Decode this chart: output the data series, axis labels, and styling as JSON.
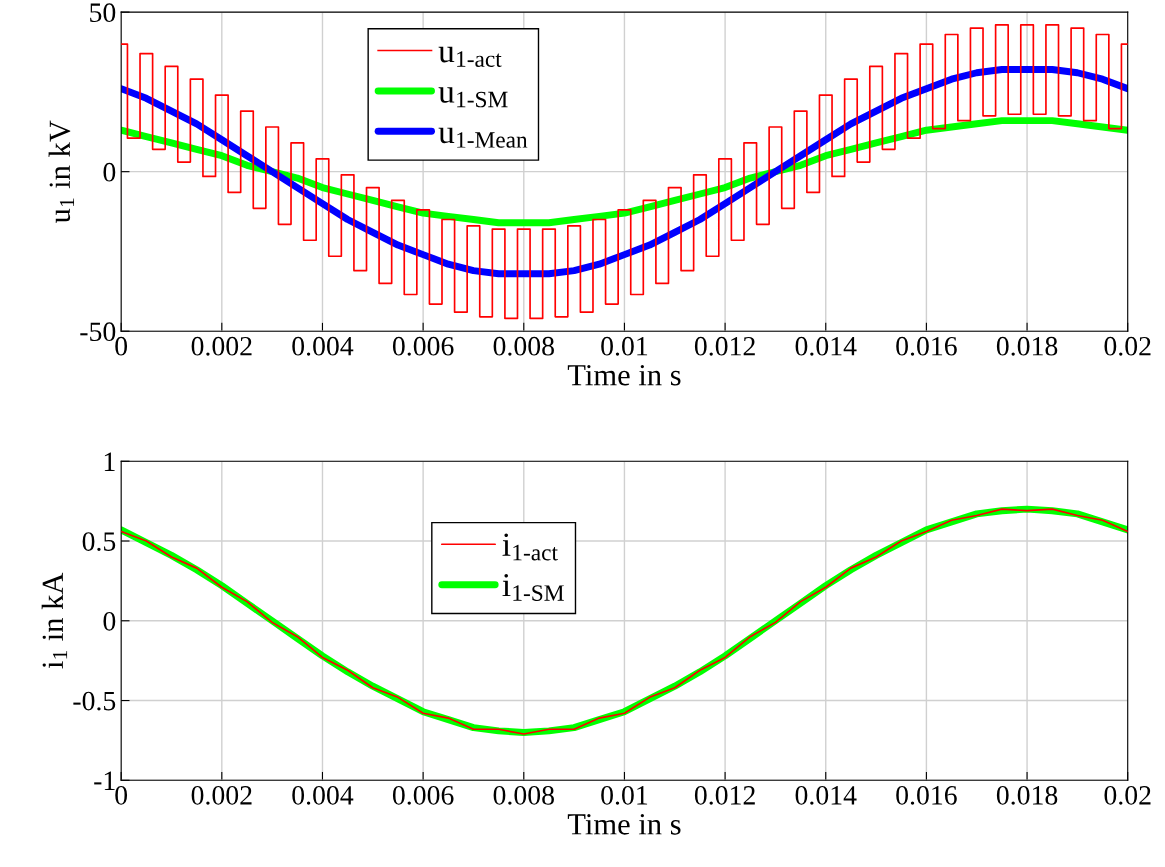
{
  "chart_data": [
    {
      "type": "line",
      "xlabel": "Time in s",
      "ylabel": "u$_{1}$ in kV",
      "xlim": [
        0,
        0.02
      ],
      "ylim": [
        -50,
        50
      ],
      "xticks": [
        0,
        0.002,
        0.004,
        0.006,
        0.008,
        0.01,
        0.012,
        0.014,
        0.016,
        0.018,
        0.02
      ],
      "yticks": [
        -50,
        0,
        50
      ],
      "grid": true,
      "legend": "top",
      "line_style": "solid",
      "marker": "none",
      "series": [
        {
          "name": "u$_{1-act}$",
          "color": "#ff0000",
          "type": "step",
          "x": [
            0,
            0.00025,
            0.0005,
            0.00075,
            0.001,
            0.00125,
            0.0015,
            0.00175,
            0.002,
            0.00225,
            0.0025,
            0.00275,
            0.003,
            0.00325,
            0.0035,
            0.00375,
            0.004,
            0.00425,
            0.0045,
            0.00475,
            0.005,
            0.00525,
            0.0055,
            0.00575,
            0.006,
            0.00625,
            0.0065,
            0.00675,
            0.007,
            0.00725,
            0.0075,
            0.00775,
            0.008,
            0.00825,
            0.0085,
            0.00875,
            0.009,
            0.00925,
            0.0095,
            0.00975,
            0.01,
            0.01025,
            0.0105,
            0.01075,
            0.011,
            0.01125,
            0.0115,
            0.01175,
            0.012,
            0.01225,
            0.0125,
            0.01275,
            0.013,
            0.01325,
            0.0135,
            0.01375,
            0.014,
            0.01425,
            0.0145,
            0.01475,
            0.015,
            0.01525,
            0.0155,
            0.01575,
            0.016,
            0.01625,
            0.0165,
            0.01675,
            0.017,
            0.01725,
            0.0175,
            0.01775,
            0.018,
            0.01825,
            0.0185,
            0.01875,
            0.019,
            0.01925,
            0.0195,
            0.01975,
            0.02
          ],
          "values": [
            40,
            10.5,
            37,
            7,
            33,
            3,
            29,
            -1.5,
            24,
            -6.5,
            19,
            -11.5,
            14,
            -16.5,
            9,
            -21.5,
            4,
            -26.5,
            -1,
            -31,
            -5,
            -35,
            -9,
            -38.5,
            -12,
            -41.5,
            -15,
            -44,
            -17,
            -45.5,
            -18,
            -46,
            -18,
            -46,
            -18,
            -45.5,
            -17,
            -44,
            -15,
            -41.5,
            -12,
            -38.5,
            -9,
            -35,
            -5,
            -31,
            -1,
            -26.5,
            4,
            -21.5,
            9,
            -16.5,
            14,
            -11.5,
            19,
            -6.5,
            24,
            -1.5,
            29,
            3,
            33,
            7,
            37,
            10.5,
            40,
            13.5,
            43,
            16,
            45,
            17.5,
            46,
            18,
            46,
            18,
            46,
            17.5,
            45,
            16,
            43,
            13.5,
            40
          ]
        },
        {
          "name": "u$_{1-SM}$",
          "color": "#00ff00",
          "values": [
            13,
            11,
            9,
            7,
            5,
            2,
            0,
            -2,
            -5,
            -7,
            -9,
            -11,
            -13,
            -14,
            -15,
            -16,
            -16,
            -16,
            -15,
            -14,
            -13,
            -11,
            -9,
            -7,
            -5,
            -2,
            0,
            2,
            5,
            7,
            9,
            11,
            13,
            14,
            15,
            16,
            16,
            16,
            15,
            14,
            13
          ]
        },
        {
          "name": "u$_{1-Mean}$",
          "color": "#0000ff",
          "values": [
            26,
            23,
            19,
            15,
            10,
            5,
            0,
            -5,
            -10,
            -15,
            -19,
            -23,
            -26,
            -29,
            -31,
            -32,
            -32,
            -32,
            -31,
            -29,
            -26,
            -23,
            -19,
            -15,
            -10,
            -5,
            0,
            5,
            10,
            15,
            19,
            23,
            26,
            29,
            31,
            32,
            32,
            32,
            31,
            29,
            26
          ]
        }
      ],
      "x": [
        0,
        0.0005,
        0.001,
        0.0015,
        0.002,
        0.0025,
        0.003,
        0.0035,
        0.004,
        0.0045,
        0.005,
        0.0055,
        0.006,
        0.0065,
        0.007,
        0.0075,
        0.008,
        0.0085,
        0.009,
        0.0095,
        0.01,
        0.0105,
        0.011,
        0.0115,
        0.012,
        0.0125,
        0.013,
        0.0135,
        0.014,
        0.0145,
        0.015,
        0.0155,
        0.016,
        0.0165,
        0.017,
        0.0175,
        0.018,
        0.0185,
        0.019,
        0.0195,
        0.02
      ]
    },
    {
      "type": "line",
      "xlabel": "Time in s",
      "ylabel": "i$_{1}$ in kA",
      "xlim": [
        0,
        0.02
      ],
      "ylim": [
        -1,
        1
      ],
      "xticks": [
        0,
        0.002,
        0.004,
        0.006,
        0.008,
        0.01,
        0.012,
        0.014,
        0.016,
        0.018,
        0.02
      ],
      "yticks": [
        -1,
        -0.5,
        0,
        0.5,
        1
      ],
      "grid": true,
      "legend": "top",
      "line_style": "solid",
      "marker": "none",
      "x": [
        0,
        0.0005,
        0.001,
        0.0015,
        0.002,
        0.0025,
        0.003,
        0.0035,
        0.004,
        0.0045,
        0.005,
        0.0055,
        0.006,
        0.0065,
        0.007,
        0.0075,
        0.008,
        0.0085,
        0.009,
        0.0095,
        0.01,
        0.0105,
        0.011,
        0.0115,
        0.012,
        0.0125,
        0.013,
        0.0135,
        0.014,
        0.0145,
        0.015,
        0.0155,
        0.016,
        0.0165,
        0.017,
        0.0175,
        0.018,
        0.0185,
        0.019,
        0.0195,
        0.02
      ],
      "series": [
        {
          "name": "i$_{1-act}$",
          "color": "#ff0000",
          "values": [
            0.56,
            0.5,
            0.4,
            0.33,
            0.21,
            0.12,
            -0.01,
            -0.1,
            -0.23,
            -0.31,
            -0.42,
            -0.48,
            -0.58,
            -0.61,
            -0.68,
            -0.68,
            -0.71,
            -0.68,
            -0.68,
            -0.61,
            -0.58,
            -0.48,
            -0.42,
            -0.31,
            -0.23,
            -0.1,
            -0.01,
            0.12,
            0.21,
            0.33,
            0.4,
            0.5,
            0.56,
            0.63,
            0.66,
            0.7,
            0.69,
            0.7,
            0.66,
            0.63,
            0.56
          ]
        },
        {
          "name": "i$_{1-SM}$",
          "color": "#00ff00",
          "values": [
            0.57,
            0.49,
            0.41,
            0.32,
            0.22,
            0.11,
            0,
            -0.11,
            -0.22,
            -0.32,
            -0.41,
            -0.49,
            -0.57,
            -0.62,
            -0.67,
            -0.69,
            -0.7,
            -0.69,
            -0.67,
            -0.62,
            -0.57,
            -0.49,
            -0.41,
            -0.32,
            -0.22,
            -0.11,
            0,
            0.11,
            0.22,
            0.32,
            0.41,
            0.49,
            0.57,
            0.62,
            0.67,
            0.69,
            0.7,
            0.69,
            0.67,
            0.62,
            0.57
          ]
        }
      ]
    }
  ]
}
